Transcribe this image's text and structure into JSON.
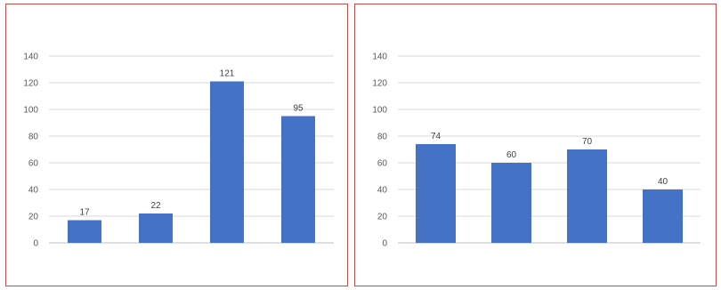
{
  "chart_data": [
    {
      "type": "bar",
      "title": "",
      "categories": [
        "",
        "",
        "",
        ""
      ],
      "values": [
        17,
        22,
        121,
        95
      ],
      "value_labels": [
        "17",
        "22",
        "121",
        "95"
      ],
      "ylim": [
        0,
        140
      ],
      "yticks": [
        0,
        20,
        40,
        60,
        80,
        100,
        120,
        140
      ],
      "grid": true,
      "bar_color": "#4472c4",
      "xlabel": "",
      "ylabel": ""
    },
    {
      "type": "bar",
      "title": "",
      "categories": [
        "",
        "",
        "",
        ""
      ],
      "values": [
        74,
        60,
        70,
        40
      ],
      "value_labels": [
        "74",
        "60",
        "70",
        "40"
      ],
      "ylim": [
        0,
        140
      ],
      "yticks": [
        0,
        20,
        40,
        60,
        80,
        100,
        120,
        140
      ],
      "grid": true,
      "bar_color": "#4472c4",
      "xlabel": "",
      "ylabel": ""
    }
  ]
}
